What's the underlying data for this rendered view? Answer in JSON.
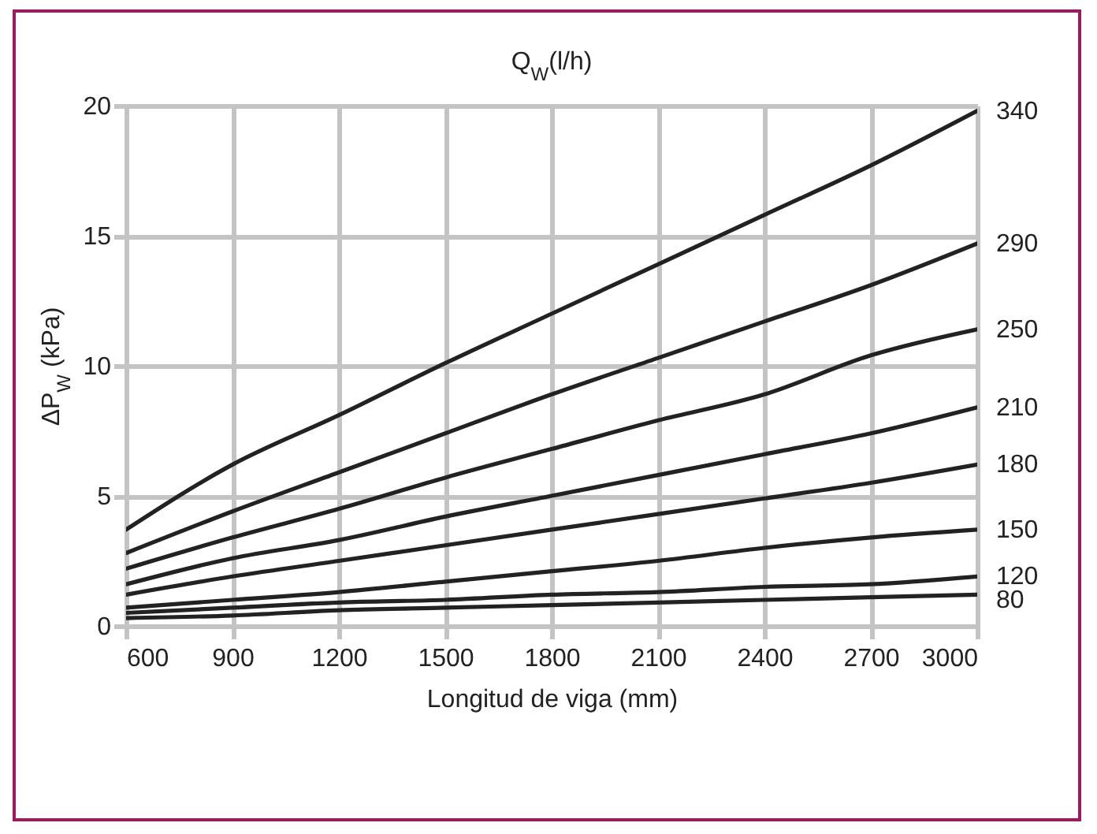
{
  "chart_data": {
    "type": "line",
    "title": "Q$_{W}$(l/h)",
    "xlabel": "Longitud de viga (mm)",
    "ylabel": "ΔP$_{W}$ (kPa)",
    "x": [
      600,
      900,
      1200,
      1500,
      1800,
      2100,
      2400,
      2700,
      3000
    ],
    "series": [
      {
        "name": "340",
        "color": "#222222",
        "values": [
          3.7,
          6.2,
          8.1,
          10.1,
          12.0,
          13.9,
          15.8,
          17.7,
          19.8
        ]
      },
      {
        "name": "290",
        "color": "#222222",
        "values": [
          2.8,
          4.4,
          5.9,
          7.4,
          8.9,
          10.3,
          11.7,
          13.1,
          14.7
        ]
      },
      {
        "name": "250",
        "color": "#222222",
        "values": [
          2.2,
          3.4,
          4.5,
          5.7,
          6.8,
          7.9,
          8.9,
          10.4,
          11.4
        ]
      },
      {
        "name": "210",
        "color": "#222222",
        "values": [
          1.6,
          2.6,
          3.3,
          4.2,
          5.0,
          5.8,
          6.6,
          7.4,
          8.4
        ]
      },
      {
        "name": "180",
        "color": "#222222",
        "values": [
          1.2,
          1.9,
          2.5,
          3.1,
          3.7,
          4.3,
          4.9,
          5.5,
          6.2
        ]
      },
      {
        "name": "150",
        "color": "#222222",
        "values": [
          0.7,
          1.0,
          1.3,
          1.7,
          2.1,
          2.5,
          3.0,
          3.4,
          3.7
        ]
      },
      {
        "name": "120",
        "color": "#222222",
        "values": [
          0.5,
          0.7,
          0.9,
          1.0,
          1.2,
          1.3,
          1.5,
          1.6,
          1.9
        ]
      },
      {
        "name": "80",
        "color": "#222222",
        "values": [
          0.3,
          0.4,
          0.6,
          0.7,
          0.8,
          0.9,
          1.0,
          1.1,
          1.2
        ]
      }
    ],
    "xlim": [
      600,
      3000
    ],
    "xticks": [
      600,
      900,
      1200,
      1500,
      1800,
      2100,
      2400,
      2700,
      3000
    ],
    "ylim": [
      0,
      20
    ],
    "yticks": [
      0,
      5,
      10,
      15,
      20
    ],
    "grid": true,
    "legend": false,
    "marker": "none",
    "line_style": "solid"
  }
}
